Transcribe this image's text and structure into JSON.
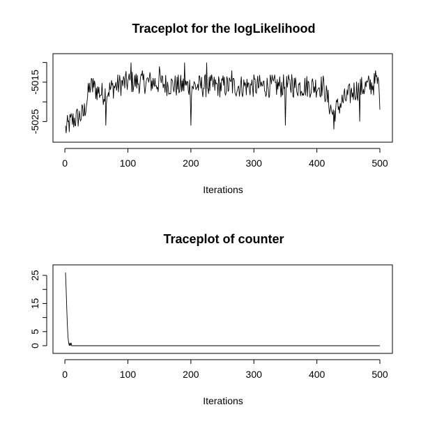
{
  "chart_data": [
    {
      "type": "line",
      "title": "Traceplot for the logLikelihood",
      "xlabel": "Iterations",
      "ylabel": "",
      "xlim": [
        1,
        500
      ],
      "ylim": [
        -5029,
        -5009
      ],
      "x_ticks": [
        0,
        100,
        200,
        300,
        400,
        500
      ],
      "y_ticks": [
        -5025,
        -5020,
        -5015,
        -5010
      ],
      "y_tick_labels": [
        "-5025",
        "",
        "-5015",
        ""
      ],
      "grid": false,
      "legend": "none",
      "line_color": "#000000",
      "series_profile": [
        [
          1,
          -5027
        ],
        [
          10,
          -5025
        ],
        [
          20,
          -5024
        ],
        [
          30,
          -5023
        ],
        [
          40,
          -5016
        ],
        [
          60,
          -5018
        ],
        [
          80,
          -5016
        ],
        [
          100,
          -5015
        ],
        [
          140,
          -5015
        ],
        [
          180,
          -5016
        ],
        [
          220,
          -5016
        ],
        [
          260,
          -5016
        ],
        [
          300,
          -5016
        ],
        [
          340,
          -5016
        ],
        [
          380,
          -5016
        ],
        [
          410,
          -5016
        ],
        [
          425,
          -5023
        ],
        [
          440,
          -5020
        ],
        [
          460,
          -5017
        ],
        [
          480,
          -5016
        ],
        [
          500,
          -5015
        ]
      ],
      "spikes": [
        [
          45,
          -5014
        ],
        [
          65,
          -5026
        ],
        [
          105,
          -5010
        ],
        [
          150,
          -5011
        ],
        [
          190,
          -5010
        ],
        [
          200,
          -5026
        ],
        [
          225,
          -5010
        ],
        [
          265,
          -5012
        ],
        [
          350,
          -5026
        ],
        [
          360,
          -5013
        ],
        [
          427,
          -5027
        ],
        [
          468,
          -5025
        ],
        [
          493,
          -5012
        ],
        [
          500,
          -5022
        ]
      ]
    },
    {
      "type": "line",
      "title": "Traceplot of counter",
      "xlabel": "Iterations",
      "ylabel": "",
      "xlim": [
        1,
        500
      ],
      "ylim": [
        -1,
        27
      ],
      "x_ticks": [
        0,
        100,
        200,
        300,
        400,
        500
      ],
      "y_ticks": [
        0,
        5,
        10,
        15,
        20,
        25
      ],
      "y_tick_labels": [
        "0",
        "5",
        "",
        "15",
        "",
        "25"
      ],
      "grid": false,
      "legend": "none",
      "line_color": "#000000",
      "x": [
        1,
        2,
        3,
        4,
        5,
        6,
        7,
        8,
        9,
        10,
        11,
        12,
        500
      ],
      "y": [
        26,
        20,
        13,
        7,
        3,
        1,
        0,
        1,
        0,
        1,
        0,
        0,
        0
      ]
    }
  ]
}
